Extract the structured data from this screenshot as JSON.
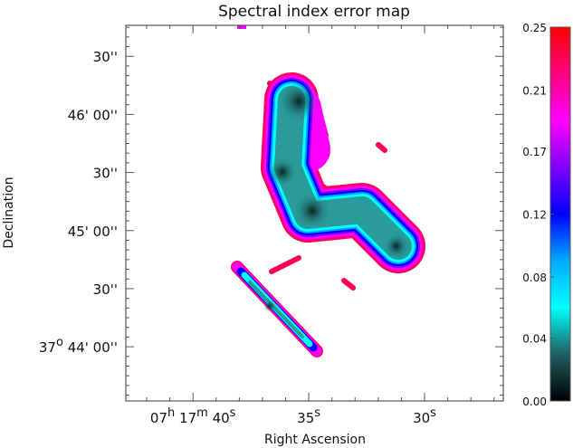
{
  "chart_data": {
    "type": "heatmap",
    "title": "Spectral index error map",
    "xlabel": "Right Ascension",
    "ylabel": "Declination",
    "x_ticks": [
      {
        "seconds": 40,
        "parts": [
          [
            "07",
            "h"
          ],
          [
            "17",
            "m"
          ],
          [
            "40",
            "s"
          ]
        ]
      },
      {
        "seconds": 35,
        "parts": [
          [
            "35",
            "s"
          ]
        ]
      },
      {
        "seconds": 30,
        "parts": [
          [
            "30",
            "s"
          ]
        ]
      }
    ],
    "x_range_seconds": [
      42.9,
      26.6
    ],
    "y_ticks": [
      {
        "arcsec": 150,
        "parts": [
          [
            "30''",
            ""
          ]
        ]
      },
      {
        "arcsec": 120,
        "parts": [
          [
            "46' 00''",
            ""
          ]
        ]
      },
      {
        "arcsec": 90,
        "parts": [
          [
            "30''",
            ""
          ]
        ]
      },
      {
        "arcsec": 60,
        "parts": [
          [
            "45' 00''",
            ""
          ]
        ]
      },
      {
        "arcsec": 30,
        "parts": [
          [
            "30''",
            ""
          ]
        ]
      },
      {
        "arcsec": 0,
        "parts": [
          [
            "37",
            "o"
          ],
          [
            " 44' 00''",
            ""
          ]
        ]
      }
    ],
    "y_range_arcsec": [
      -28,
      166
    ],
    "colorbar": {
      "range": [
        0.0,
        0.25
      ],
      "tick_labels": [
        "0.00",
        "0.04",
        "0.08",
        "0.12",
        "0.17",
        "0.21",
        "0.25"
      ],
      "tick_values": [
        0.0,
        0.042,
        0.083,
        0.125,
        0.167,
        0.208,
        0.25
      ],
      "stops": [
        "#000000",
        "#1f5f5f",
        "#00ffff",
        "#00aaff",
        "#0000ff",
        "#8000ff",
        "#ff00ff",
        "#ff0080",
        "#ff0000"
      ]
    }
  }
}
